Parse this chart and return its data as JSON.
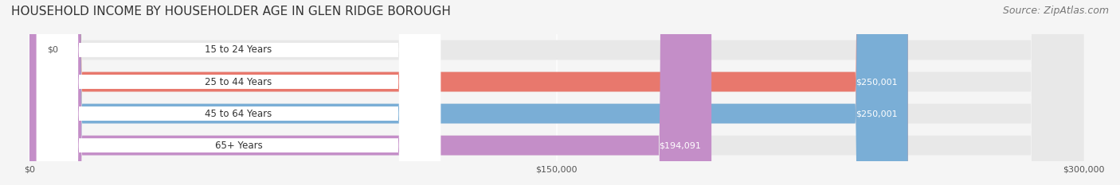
{
  "title": "HOUSEHOLD INCOME BY HOUSEHOLDER AGE IN GLEN RIDGE BOROUGH",
  "source": "Source: ZipAtlas.com",
  "categories": [
    "15 to 24 Years",
    "25 to 44 Years",
    "45 to 64 Years",
    "65+ Years"
  ],
  "values": [
    0,
    250001,
    250001,
    194091
  ],
  "bar_colors": [
    "#f5cfa0",
    "#e8786d",
    "#7aaed6",
    "#c48ec8"
  ],
  "label_colors": [
    "#8a6030",
    "#ffffff",
    "#ffffff",
    "#ffffff"
  ],
  "max_value": 300000,
  "xticks": [
    0,
    150000,
    300000
  ],
  "xtick_labels": [
    "$0",
    "$150,000",
    "$300,000"
  ],
  "value_labels": [
    "$0",
    "$250,001",
    "$250,001",
    "$194,091"
  ],
  "background_color": "#f5f5f5",
  "bar_background_color": "#e8e8e8",
  "title_fontsize": 11,
  "source_fontsize": 9
}
